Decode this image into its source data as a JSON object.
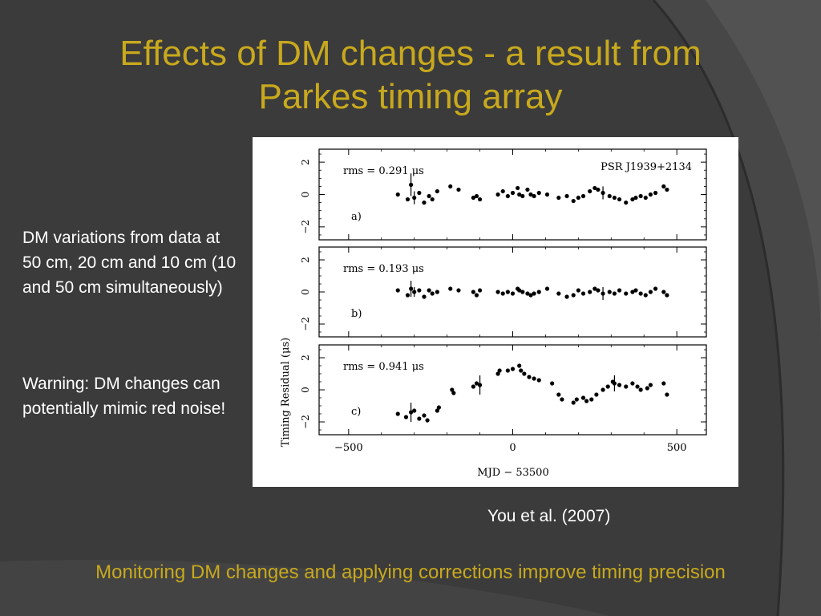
{
  "slide": {
    "title_line1": "Effects of DM changes - a result from",
    "title_line2": "Parkes timing array",
    "note1": "DM variations from data at 50 cm, 20 cm and 10 cm (10 and 50 cm simultaneously)",
    "note2": "Warning: DM changes can potentially mimic red noise!",
    "citation": "You et al. (2007)",
    "footer": "Monitoring DM changes and applying corrections improve timing precision",
    "colors": {
      "background": "#3b3b3b",
      "title": "#c8a91d",
      "text": "#ffffff",
      "accent": "#c8a91d"
    }
  },
  "chart_data": {
    "type": "scatter",
    "pulsar_label": "PSR J1939+2134",
    "xlabel": "MJD − 53500",
    "ylabel": "Timing Residual (μs)",
    "xlim": [
      -590,
      590
    ],
    "ylim": [
      -2.8,
      2.8
    ],
    "x_ticks": [
      -500,
      0,
      500
    ],
    "x_tick_labels": [
      "−500",
      "0",
      "500"
    ],
    "y_ticks": [
      -2,
      0,
      2
    ],
    "y_tick_labels": [
      "−2",
      "0",
      "2"
    ],
    "panels": [
      {
        "panel_label": "a)",
        "rms_text": "rms =  0.291 μs",
        "x": [
          -350,
          -320,
          -310,
          -300,
          -285,
          -270,
          -255,
          -245,
          -230,
          -190,
          -165,
          -120,
          -110,
          -100,
          -45,
          -30,
          -15,
          0,
          15,
          20,
          30,
          45,
          55,
          65,
          80,
          105,
          140,
          165,
          185,
          200,
          215,
          235,
          250,
          260,
          275,
          295,
          310,
          325,
          345,
          365,
          375,
          390,
          405,
          420,
          435,
          460,
          470
        ],
        "y": [
          0.0,
          -0.3,
          0.6,
          -0.2,
          0.1,
          -0.5,
          -0.1,
          -0.3,
          0.2,
          0.5,
          0.3,
          -0.2,
          -0.1,
          -0.3,
          0.0,
          0.2,
          -0.1,
          0.1,
          0.4,
          0.0,
          -0.1,
          0.3,
          0.0,
          -0.1,
          0.1,
          0.0,
          -0.2,
          -0.1,
          -0.4,
          -0.2,
          -0.1,
          0.2,
          0.4,
          0.3,
          0.1,
          -0.1,
          -0.2,
          -0.3,
          -0.5,
          -0.3,
          -0.2,
          -0.1,
          -0.2,
          0.0,
          0.1,
          0.5,
          0.3
        ],
        "err": [
          0,
          0,
          0.7,
          0.4,
          0,
          0,
          0,
          0,
          0,
          0,
          0,
          0,
          0,
          0,
          0,
          0,
          0,
          0,
          0,
          0,
          0,
          0,
          0,
          0,
          0,
          0,
          0,
          0,
          0,
          0,
          0,
          0,
          0,
          0,
          0.4,
          0,
          0,
          0,
          0,
          0,
          0,
          0,
          0,
          0,
          0,
          0,
          0
        ]
      },
      {
        "panel_label": "b)",
        "rms_text": "rms =  0.193 μs",
        "x": [
          -350,
          -320,
          -310,
          -300,
          -285,
          -270,
          -255,
          -245,
          -230,
          -190,
          -165,
          -120,
          -110,
          -100,
          -45,
          -30,
          -15,
          0,
          15,
          20,
          30,
          45,
          55,
          65,
          80,
          105,
          140,
          165,
          185,
          200,
          215,
          235,
          250,
          260,
          275,
          295,
          310,
          325,
          345,
          365,
          375,
          390,
          405,
          420,
          435,
          460,
          470
        ],
        "y": [
          0.1,
          -0.2,
          0.2,
          0.0,
          0.1,
          -0.3,
          0.1,
          -0.1,
          0.0,
          0.2,
          0.1,
          0.0,
          -0.2,
          0.1,
          0.0,
          -0.1,
          0.0,
          -0.1,
          0.2,
          0.1,
          0.0,
          -0.1,
          -0.2,
          -0.1,
          0.0,
          0.2,
          -0.1,
          -0.3,
          -0.2,
          0.1,
          -0.1,
          0.0,
          0.2,
          0.1,
          -0.1,
          0.0,
          -0.1,
          0.1,
          -0.1,
          0.0,
          0.1,
          -0.1,
          -0.2,
          0.0,
          0.2,
          0.0,
          -0.2
        ],
        "err": [
          0,
          0,
          0.5,
          0.3,
          0,
          0,
          0,
          0,
          0,
          0,
          0,
          0,
          0,
          0,
          0,
          0,
          0,
          0,
          0,
          0,
          0,
          0,
          0,
          0,
          0,
          0,
          0,
          0,
          0,
          0,
          0,
          0,
          0,
          0,
          0.4,
          0,
          0,
          0,
          0,
          0,
          0,
          0,
          0,
          0,
          0,
          0,
          0
        ]
      },
      {
        "panel_label": "c)",
        "rms_text": "rms =  0.941 μs",
        "x": [
          -350,
          -325,
          -310,
          -300,
          -285,
          -270,
          -260,
          -230,
          -225,
          -185,
          -180,
          -120,
          -110,
          -100,
          -45,
          -40,
          -15,
          0,
          20,
          25,
          35,
          50,
          65,
          80,
          120,
          140,
          150,
          185,
          195,
          215,
          225,
          240,
          255,
          275,
          290,
          305,
          310,
          325,
          345,
          365,
          380,
          390,
          410,
          420,
          460,
          470
        ],
        "y": [
          -1.5,
          -1.7,
          -1.4,
          -1.3,
          -1.8,
          -1.6,
          -1.9,
          -1.3,
          -1.1,
          0.0,
          -0.2,
          0.2,
          0.4,
          0.3,
          1.0,
          1.2,
          1.2,
          1.3,
          1.5,
          1.2,
          1.0,
          0.8,
          0.7,
          0.6,
          0.4,
          -0.3,
          -0.6,
          -0.8,
          -0.6,
          -0.5,
          -0.7,
          -0.6,
          -0.3,
          0.0,
          0.2,
          0.5,
          0.4,
          0.3,
          0.2,
          0.4,
          0.2,
          0.0,
          0.1,
          0.3,
          0.4,
          -0.3
        ],
        "err": [
          0,
          0,
          0.6,
          0,
          0,
          0,
          0,
          0,
          0,
          0,
          0,
          0,
          0,
          0.6,
          0,
          0,
          0,
          0,
          0,
          0,
          0,
          0,
          0,
          0,
          0,
          0,
          0,
          0,
          0,
          0,
          0,
          0,
          0,
          0,
          0,
          0,
          0.5,
          0,
          0,
          0,
          0,
          0,
          0,
          0,
          0,
          0
        ]
      }
    ]
  }
}
